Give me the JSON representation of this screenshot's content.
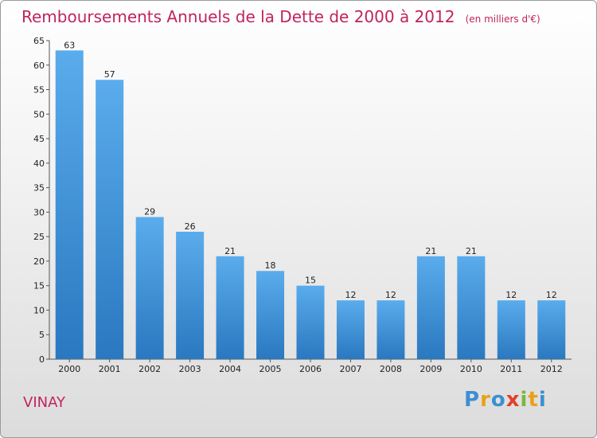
{
  "chart_data": {
    "type": "bar",
    "title": "Remboursements Annuels de la Dette de 2000 à 2012",
    "subtitle": "(en milliers d'€)",
    "categories": [
      "2000",
      "2001",
      "2002",
      "2003",
      "2004",
      "2005",
      "2006",
      "2007",
      "2008",
      "2009",
      "2010",
      "2011",
      "2012"
    ],
    "values": [
      63,
      57,
      29,
      26,
      21,
      18,
      15,
      12,
      12,
      21,
      21,
      12,
      12
    ],
    "ylim": [
      0,
      65
    ],
    "yticks": [
      0,
      5,
      10,
      15,
      20,
      25,
      30,
      35,
      40,
      45,
      50,
      55,
      60,
      65
    ],
    "grid": false,
    "bar_color": "#4f9fe0",
    "bar_color_dark": "#2a78c0"
  },
  "footer": {
    "commune": "VINAY",
    "brand": [
      "P",
      "r",
      "o",
      "x",
      "i",
      "t",
      "i"
    ],
    "brand_colors": [
      "#3b8fd4",
      "#e8a21a",
      "#3b8fd4",
      "#e0402a",
      "#7ab83a",
      "#e8a21a",
      "#3b8fd4"
    ]
  },
  "colors": {
    "title": "#c1235f"
  }
}
